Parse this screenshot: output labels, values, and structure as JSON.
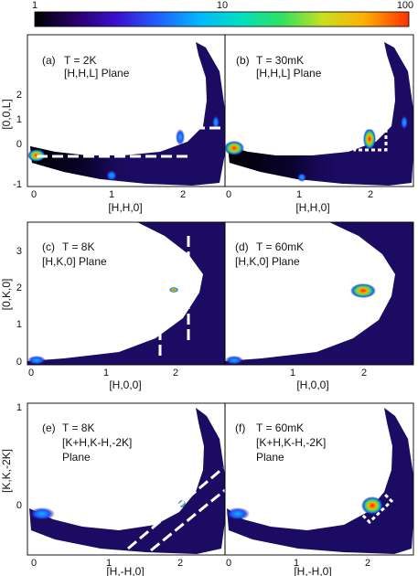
{
  "colorbar": {
    "scale": "log",
    "ticks": [
      "1",
      "10",
      "100"
    ],
    "colors": [
      "#000000",
      "#2a006a",
      "#3a10d0",
      "#2060ff",
      "#00b8ff",
      "#00e0c0",
      "#30e060",
      "#c8e020",
      "#ffb000",
      "#ff3000"
    ]
  },
  "panel_bg": "#1c0b63",
  "rows": [
    {
      "ylabel": "[0,0,L]",
      "xlabel": "[H,H,0]",
      "xticks": [
        "0",
        "1",
        "2"
      ],
      "yticks": [
        "2",
        "1",
        "0",
        "-1"
      ],
      "panels": [
        {
          "label": "(a)",
          "temp": "T = 2K",
          "plane": [
            "[H,H,L] Plane"
          ]
        },
        {
          "label": "(b)",
          "temp": "T = 30mK",
          "plane": [
            "[H,H,L] Plane"
          ]
        }
      ]
    },
    {
      "ylabel": "[0,K,0]",
      "xlabel": "[H,0,0]",
      "xticks": [
        "0",
        "1",
        "2"
      ],
      "yticks": [
        "3",
        "2",
        "1",
        "0"
      ],
      "panels": [
        {
          "label": "(c)",
          "temp": "T = 8K",
          "plane": [
            "[H,K,0] Plane"
          ]
        },
        {
          "label": "(d)",
          "temp": "T = 60mK",
          "plane": [
            "[H,K,0] Plane"
          ]
        }
      ]
    },
    {
      "ylabel": "[K,K,-2K]",
      "xlabel": "[H,-H,0]",
      "xticks": [
        "0",
        "1",
        "2"
      ],
      "yticks": [
        "1",
        "0"
      ],
      "panels": [
        {
          "label": "(e)",
          "temp": "T = 8K",
          "plane": [
            "[K+H,K-H,-2K]",
            "Plane"
          ]
        },
        {
          "label": "(f)",
          "temp": "T = 60mK",
          "plane": [
            "[K+H,K-H,-2K]",
            "Plane"
          ]
        }
      ]
    }
  ]
}
